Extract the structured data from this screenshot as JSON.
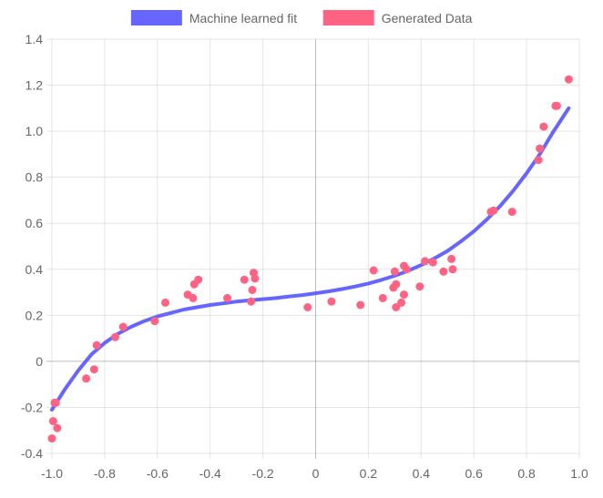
{
  "chart_data": {
    "type": "scatter",
    "legend_position": "top",
    "grid": true,
    "xlim": [
      -1.0,
      1.0
    ],
    "ylim": [
      -0.4,
      1.4
    ],
    "x_ticks": [
      "-1.0",
      "-0.8",
      "-0.6",
      "-0.4",
      "-0.2",
      "0",
      "0.2",
      "0.4",
      "0.6",
      "0.8",
      "1.0"
    ],
    "y_ticks": [
      "-0.4",
      "-0.2",
      "0",
      "0.2",
      "0.4",
      "0.6",
      "0.8",
      "1.0",
      "1.2",
      "1.4"
    ],
    "series": [
      {
        "name": "Machine learned fit",
        "kind": "line",
        "color": "#6666ff",
        "points": [
          [
            -1.0,
            -0.21
          ],
          [
            -0.95,
            -0.12
          ],
          [
            -0.9,
            -0.04
          ],
          [
            -0.85,
            0.03
          ],
          [
            -0.8,
            0.08
          ],
          [
            -0.75,
            0.12
          ],
          [
            -0.7,
            0.15
          ],
          [
            -0.65,
            0.175
          ],
          [
            -0.6,
            0.195
          ],
          [
            -0.55,
            0.21
          ],
          [
            -0.5,
            0.225
          ],
          [
            -0.45,
            0.235
          ],
          [
            -0.4,
            0.245
          ],
          [
            -0.35,
            0.252
          ],
          [
            -0.3,
            0.26
          ],
          [
            -0.25,
            0.265
          ],
          [
            -0.2,
            0.27
          ],
          [
            -0.15,
            0.275
          ],
          [
            -0.1,
            0.282
          ],
          [
            -0.05,
            0.288
          ],
          [
            0.0,
            0.296
          ],
          [
            0.05,
            0.304
          ],
          [
            0.1,
            0.314
          ],
          [
            0.15,
            0.325
          ],
          [
            0.2,
            0.338
          ],
          [
            0.25,
            0.354
          ],
          [
            0.3,
            0.372
          ],
          [
            0.35,
            0.393
          ],
          [
            0.4,
            0.418
          ],
          [
            0.45,
            0.447
          ],
          [
            0.5,
            0.48
          ],
          [
            0.55,
            0.52
          ],
          [
            0.6,
            0.565
          ],
          [
            0.65,
            0.617
          ],
          [
            0.7,
            0.675
          ],
          [
            0.75,
            0.742
          ],
          [
            0.8,
            0.817
          ],
          [
            0.85,
            0.9
          ],
          [
            0.9,
            0.995
          ],
          [
            0.96,
            1.1
          ]
        ]
      },
      {
        "name": "Generated Data",
        "kind": "scatter",
        "color": "#ff6384",
        "points": [
          [
            -1.0,
            -0.335
          ],
          [
            -0.995,
            -0.26
          ],
          [
            -0.99,
            -0.18
          ],
          [
            -0.985,
            -0.18
          ],
          [
            -0.98,
            -0.29
          ],
          [
            -0.87,
            -0.075
          ],
          [
            -0.84,
            -0.035
          ],
          [
            -0.83,
            0.07
          ],
          [
            -0.76,
            0.105
          ],
          [
            -0.73,
            0.15
          ],
          [
            -0.61,
            0.175
          ],
          [
            -0.57,
            0.255
          ],
          [
            -0.485,
            0.29
          ],
          [
            -0.465,
            0.275
          ],
          [
            -0.46,
            0.335
          ],
          [
            -0.445,
            0.355
          ],
          [
            -0.335,
            0.275
          ],
          [
            -0.27,
            0.355
          ],
          [
            -0.245,
            0.26
          ],
          [
            -0.24,
            0.31
          ],
          [
            -0.235,
            0.385
          ],
          [
            -0.23,
            0.36
          ],
          [
            -0.03,
            0.235
          ],
          [
            0.06,
            0.26
          ],
          [
            0.17,
            0.245
          ],
          [
            0.22,
            0.395
          ],
          [
            0.255,
            0.275
          ],
          [
            0.295,
            0.32
          ],
          [
            0.3,
            0.39
          ],
          [
            0.305,
            0.335
          ],
          [
            0.305,
            0.235
          ],
          [
            0.325,
            0.255
          ],
          [
            0.335,
            0.29
          ],
          [
            0.335,
            0.415
          ],
          [
            0.345,
            0.4
          ],
          [
            0.395,
            0.325
          ],
          [
            0.415,
            0.435
          ],
          [
            0.445,
            0.43
          ],
          [
            0.485,
            0.39
          ],
          [
            0.515,
            0.445
          ],
          [
            0.52,
            0.4
          ],
          [
            0.665,
            0.65
          ],
          [
            0.675,
            0.655
          ],
          [
            0.745,
            0.65
          ],
          [
            0.845,
            0.875
          ],
          [
            0.85,
            0.925
          ],
          [
            0.865,
            1.02
          ],
          [
            0.91,
            1.11
          ],
          [
            0.915,
            1.11
          ],
          [
            0.96,
            1.225
          ]
        ]
      }
    ]
  }
}
